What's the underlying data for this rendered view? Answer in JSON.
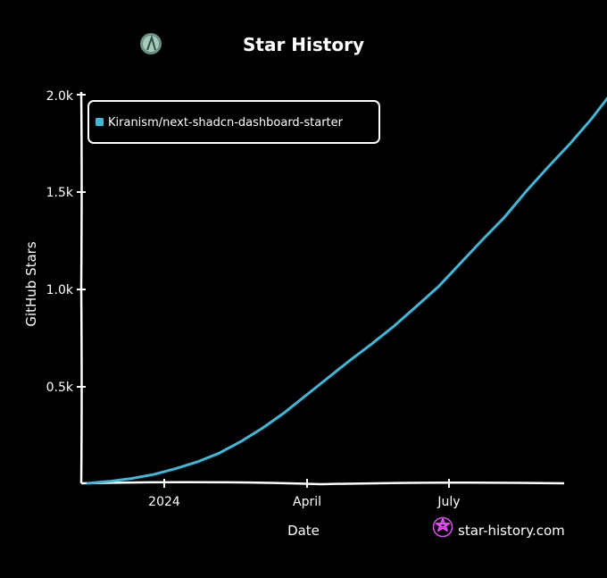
{
  "chart_data": {
    "type": "line",
    "title": "Star History",
    "xlabel": "Date",
    "ylabel": "GitHub Stars",
    "x_ticks": [
      "2024",
      "April",
      "July"
    ],
    "y_ticks": [
      "0.5k",
      "1.0k",
      "1.5k",
      "2.0k"
    ],
    "ylim": [
      0,
      2000
    ],
    "legend_position": "top-left",
    "series": [
      {
        "name": "Kiranism/next-shadcn-dashboard-starter",
        "color": "#3fb8da",
        "points": [
          [
            "2023-11-13",
            0
          ],
          [
            "2023-11-27",
            10
          ],
          [
            "2023-12-11",
            25
          ],
          [
            "2023-12-25",
            45
          ],
          [
            "2024-01-08",
            75
          ],
          [
            "2024-01-22",
            110
          ],
          [
            "2024-02-05",
            155
          ],
          [
            "2024-02-19",
            215
          ],
          [
            "2024-03-04",
            285
          ],
          [
            "2024-03-18",
            365
          ],
          [
            "2024-04-01",
            455
          ],
          [
            "2024-04-15",
            545
          ],
          [
            "2024-04-29",
            635
          ],
          [
            "2024-05-13",
            720
          ],
          [
            "2024-05-27",
            810
          ],
          [
            "2024-06-10",
            910
          ],
          [
            "2024-06-24",
            1010
          ],
          [
            "2024-07-08",
            1130
          ],
          [
            "2024-07-22",
            1250
          ],
          [
            "2024-08-05",
            1365
          ],
          [
            "2024-08-19",
            1500
          ],
          [
            "2024-09-02",
            1625
          ],
          [
            "2024-09-16",
            1745
          ],
          [
            "2024-09-30",
            1875
          ],
          [
            "2024-10-12",
            2000
          ]
        ]
      }
    ],
    "brand": "star-history.com",
    "brand_color": "#e14cf5"
  }
}
